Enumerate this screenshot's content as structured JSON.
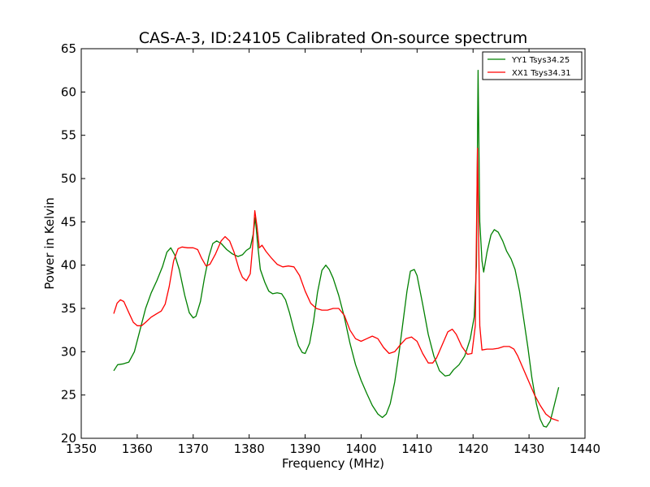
{
  "chart_data": {
    "type": "line",
    "title": "CAS-A-3, ID:24105 Calibrated On-source spectrum",
    "xlabel": "Frequency (MHz)",
    "ylabel": "Power in Kelvin",
    "xlim": [
      1350,
      1440
    ],
    "ylim": [
      20,
      65
    ],
    "xticks": [
      1350,
      1360,
      1370,
      1380,
      1390,
      1400,
      1410,
      1420,
      1430,
      1440
    ],
    "yticks": [
      20,
      25,
      30,
      35,
      40,
      45,
      50,
      55,
      60,
      65
    ],
    "grid": false,
    "legend_position": "top-right",
    "series": [
      {
        "name": "YY1 Tsys34.25",
        "color": "#008000",
        "points": [
          [
            1355.8,
            27.8
          ],
          [
            1356.5,
            28.5
          ],
          [
            1357.5,
            28.6
          ],
          [
            1358.5,
            28.8
          ],
          [
            1359.5,
            30.0
          ],
          [
            1360.5,
            32.5
          ],
          [
            1361.5,
            35.0
          ],
          [
            1362.5,
            36.8
          ],
          [
            1363.5,
            38.2
          ],
          [
            1364.5,
            39.8
          ],
          [
            1365.3,
            41.5
          ],
          [
            1366.0,
            42.0
          ],
          [
            1366.7,
            41.2
          ],
          [
            1367.5,
            39.5
          ],
          [
            1368.5,
            36.5
          ],
          [
            1369.3,
            34.5
          ],
          [
            1370.0,
            33.9
          ],
          [
            1370.5,
            34.1
          ],
          [
            1371.3,
            35.8
          ],
          [
            1372.0,
            38.5
          ],
          [
            1372.8,
            41.0
          ],
          [
            1373.5,
            42.5
          ],
          [
            1374.2,
            42.8
          ],
          [
            1375.0,
            42.5
          ],
          [
            1376.0,
            41.8
          ],
          [
            1377.0,
            41.3
          ],
          [
            1378.0,
            41.0
          ],
          [
            1378.8,
            41.2
          ],
          [
            1379.5,
            41.7
          ],
          [
            1380.2,
            42.0
          ],
          [
            1380.7,
            43.5
          ],
          [
            1381.1,
            45.5
          ],
          [
            1381.5,
            42.5
          ],
          [
            1382.0,
            39.5
          ],
          [
            1382.8,
            38.0
          ],
          [
            1383.5,
            37.0
          ],
          [
            1384.2,
            36.7
          ],
          [
            1385.0,
            36.8
          ],
          [
            1385.8,
            36.7
          ],
          [
            1386.5,
            36.0
          ],
          [
            1387.2,
            34.5
          ],
          [
            1388.0,
            32.5
          ],
          [
            1388.8,
            30.7
          ],
          [
            1389.5,
            29.9
          ],
          [
            1390.0,
            29.8
          ],
          [
            1390.8,
            31.0
          ],
          [
            1391.5,
            33.5
          ],
          [
            1392.2,
            36.8
          ],
          [
            1393.0,
            39.4
          ],
          [
            1393.7,
            40.0
          ],
          [
            1394.3,
            39.5
          ],
          [
            1395.0,
            38.5
          ],
          [
            1396.0,
            36.5
          ],
          [
            1397.0,
            34.0
          ],
          [
            1398.0,
            31.0
          ],
          [
            1399.0,
            28.5
          ],
          [
            1400.0,
            26.7
          ],
          [
            1401.0,
            25.2
          ],
          [
            1402.0,
            23.8
          ],
          [
            1403.0,
            22.8
          ],
          [
            1403.8,
            22.4
          ],
          [
            1404.5,
            22.8
          ],
          [
            1405.2,
            24.0
          ],
          [
            1406.0,
            26.5
          ],
          [
            1406.8,
            30.0
          ],
          [
            1407.5,
            33.5
          ],
          [
            1408.2,
            37.0
          ],
          [
            1408.8,
            39.3
          ],
          [
            1409.5,
            39.5
          ],
          [
            1410.0,
            38.8
          ],
          [
            1411.0,
            35.5
          ],
          [
            1412.0,
            32.0
          ],
          [
            1413.0,
            29.5
          ],
          [
            1414.0,
            27.8
          ],
          [
            1415.0,
            27.2
          ],
          [
            1415.8,
            27.3
          ],
          [
            1416.5,
            27.9
          ],
          [
            1417.5,
            28.5
          ],
          [
            1418.5,
            29.5
          ],
          [
            1419.5,
            31.5
          ],
          [
            1420.2,
            34.0
          ],
          [
            1420.6,
            40.0
          ],
          [
            1420.9,
            62.5
          ],
          [
            1421.2,
            45.0
          ],
          [
            1421.6,
            40.5
          ],
          [
            1421.9,
            39.2
          ],
          [
            1422.5,
            41.5
          ],
          [
            1423.2,
            43.5
          ],
          [
            1423.8,
            44.1
          ],
          [
            1424.5,
            43.8
          ],
          [
            1425.3,
            42.8
          ],
          [
            1426.0,
            41.6
          ],
          [
            1426.8,
            40.7
          ],
          [
            1427.5,
            39.5
          ],
          [
            1428.3,
            37.0
          ],
          [
            1429.0,
            34.0
          ],
          [
            1429.8,
            30.5
          ],
          [
            1430.5,
            27.0
          ],
          [
            1431.3,
            24.0
          ],
          [
            1432.0,
            22.2
          ],
          [
            1432.6,
            21.4
          ],
          [
            1433.1,
            21.3
          ],
          [
            1433.8,
            22.0
          ],
          [
            1434.5,
            23.8
          ],
          [
            1435.3,
            25.9
          ]
        ]
      },
      {
        "name": "XX1 Tsys34.31",
        "color": "#ff0000",
        "points": [
          [
            1355.8,
            34.4
          ],
          [
            1356.4,
            35.6
          ],
          [
            1357.0,
            36.0
          ],
          [
            1357.6,
            35.8
          ],
          [
            1358.5,
            34.5
          ],
          [
            1359.3,
            33.4
          ],
          [
            1360.0,
            33.0
          ],
          [
            1360.8,
            33.0
          ],
          [
            1361.5,
            33.4
          ],
          [
            1362.5,
            34.0
          ],
          [
            1363.5,
            34.4
          ],
          [
            1364.3,
            34.7
          ],
          [
            1365.0,
            35.5
          ],
          [
            1365.7,
            37.5
          ],
          [
            1366.5,
            40.5
          ],
          [
            1367.3,
            41.9
          ],
          [
            1368.0,
            42.1
          ],
          [
            1369.0,
            42.0
          ],
          [
            1370.0,
            42.0
          ],
          [
            1370.8,
            41.8
          ],
          [
            1371.5,
            40.8
          ],
          [
            1372.3,
            39.9
          ],
          [
            1373.0,
            40.1
          ],
          [
            1374.0,
            41.3
          ],
          [
            1375.0,
            42.8
          ],
          [
            1375.7,
            43.3
          ],
          [
            1376.5,
            42.8
          ],
          [
            1377.3,
            41.5
          ],
          [
            1378.2,
            39.5
          ],
          [
            1378.8,
            38.6
          ],
          [
            1379.5,
            38.2
          ],
          [
            1380.2,
            39.0
          ],
          [
            1380.6,
            42.0
          ],
          [
            1381.0,
            46.3
          ],
          [
            1381.4,
            44.5
          ],
          [
            1381.8,
            42.0
          ],
          [
            1382.3,
            42.3
          ],
          [
            1383.0,
            41.6
          ],
          [
            1384.0,
            40.8
          ],
          [
            1385.0,
            40.1
          ],
          [
            1386.0,
            39.8
          ],
          [
            1387.0,
            39.9
          ],
          [
            1388.0,
            39.8
          ],
          [
            1389.0,
            38.8
          ],
          [
            1390.0,
            37.0
          ],
          [
            1391.0,
            35.6
          ],
          [
            1392.0,
            35.0
          ],
          [
            1393.0,
            34.8
          ],
          [
            1394.0,
            34.8
          ],
          [
            1395.0,
            35.0
          ],
          [
            1396.0,
            35.0
          ],
          [
            1397.0,
            34.2
          ],
          [
            1398.0,
            32.5
          ],
          [
            1399.0,
            31.5
          ],
          [
            1400.0,
            31.2
          ],
          [
            1401.0,
            31.5
          ],
          [
            1402.0,
            31.8
          ],
          [
            1403.0,
            31.5
          ],
          [
            1404.0,
            30.5
          ],
          [
            1405.0,
            29.8
          ],
          [
            1406.0,
            30.0
          ],
          [
            1407.0,
            30.8
          ],
          [
            1408.0,
            31.5
          ],
          [
            1409.0,
            31.7
          ],
          [
            1410.0,
            31.2
          ],
          [
            1411.0,
            29.8
          ],
          [
            1412.0,
            28.7
          ],
          [
            1412.8,
            28.7
          ],
          [
            1413.5,
            29.3
          ],
          [
            1414.5,
            30.8
          ],
          [
            1415.5,
            32.3
          ],
          [
            1416.3,
            32.6
          ],
          [
            1417.0,
            32.0
          ],
          [
            1418.0,
            30.6
          ],
          [
            1419.0,
            29.7
          ],
          [
            1419.8,
            29.8
          ],
          [
            1420.4,
            33.0
          ],
          [
            1420.8,
            53.5
          ],
          [
            1421.2,
            33.0
          ],
          [
            1421.6,
            30.2
          ],
          [
            1422.5,
            30.3
          ],
          [
            1423.5,
            30.3
          ],
          [
            1424.5,
            30.4
          ],
          [
            1425.5,
            30.6
          ],
          [
            1426.5,
            30.6
          ],
          [
            1427.3,
            30.3
          ],
          [
            1428.0,
            29.5
          ],
          [
            1429.0,
            28.0
          ],
          [
            1430.0,
            26.5
          ],
          [
            1431.0,
            25.0
          ],
          [
            1432.0,
            23.8
          ],
          [
            1433.0,
            22.8
          ],
          [
            1434.0,
            22.3
          ],
          [
            1435.3,
            22.0
          ]
        ]
      }
    ]
  }
}
